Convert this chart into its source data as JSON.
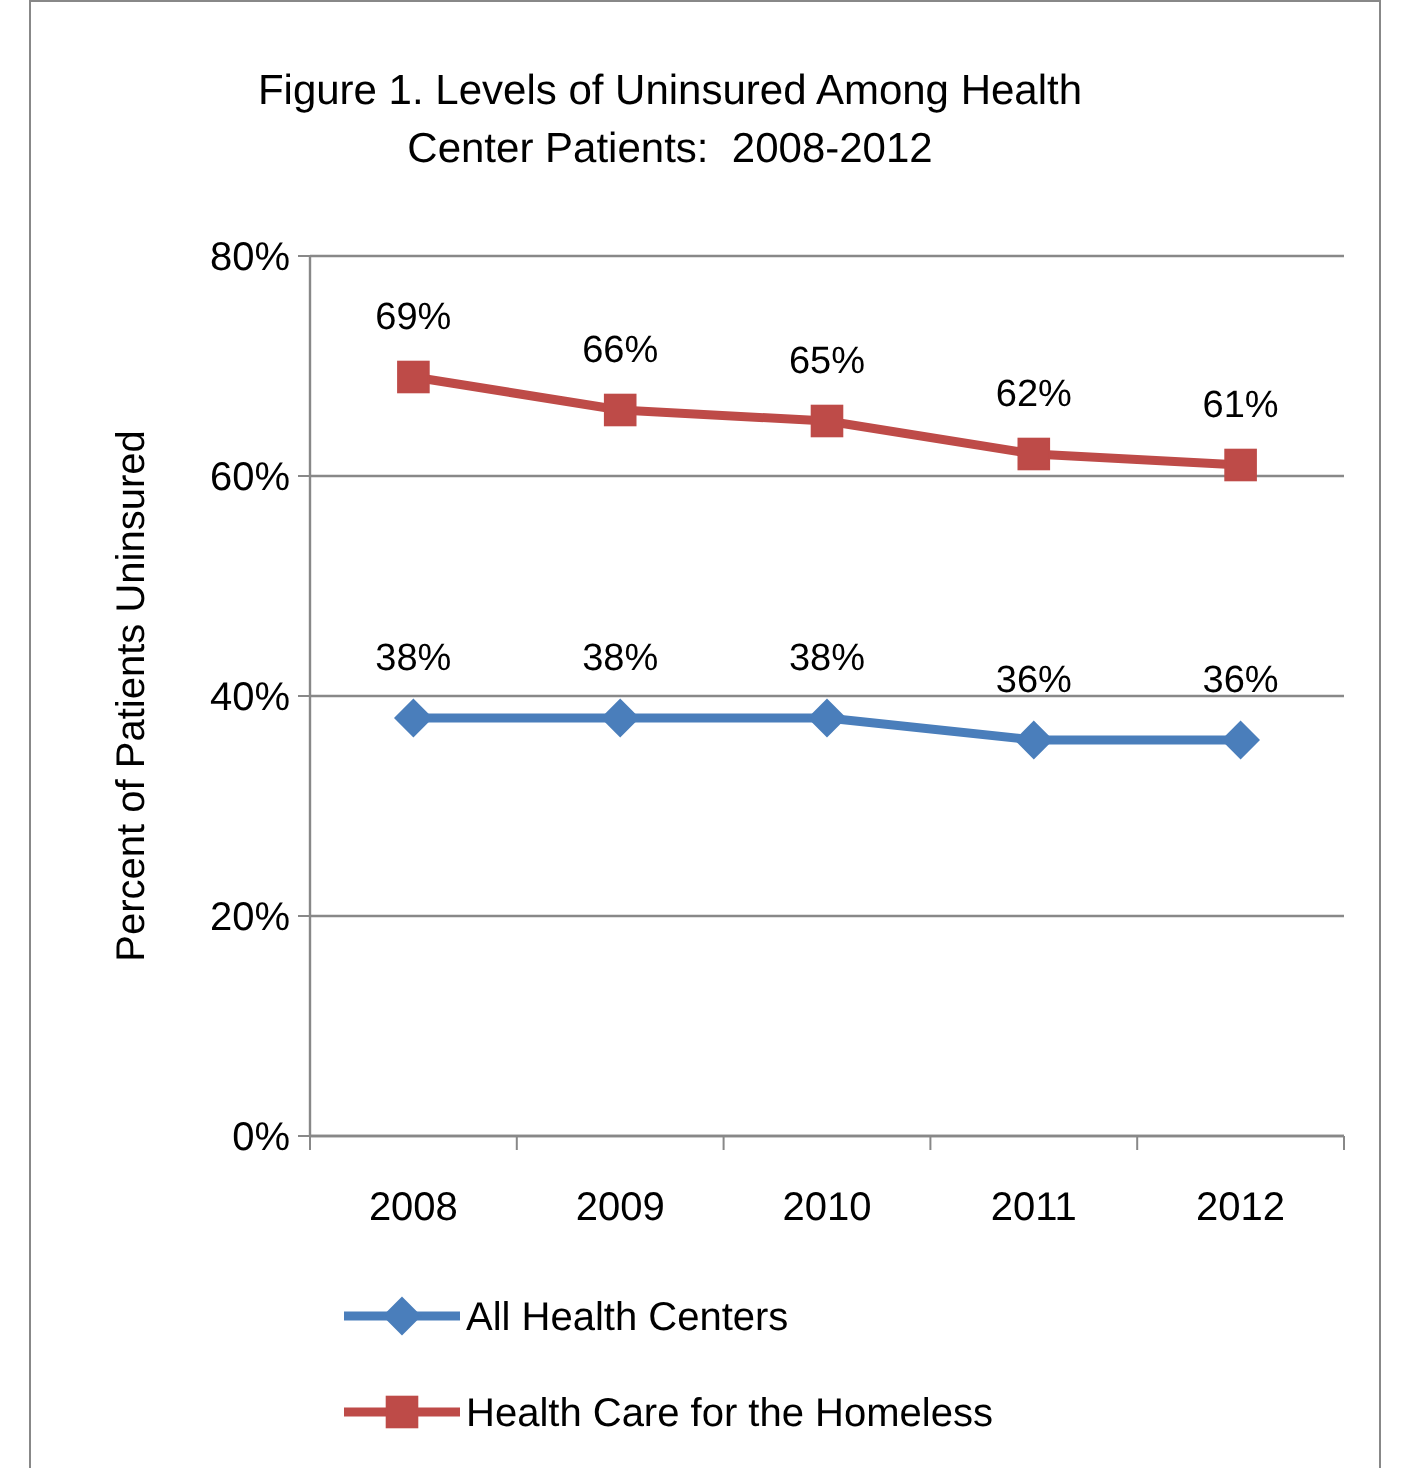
{
  "chart_data": {
    "type": "line",
    "title": "Figure 1. Levels of Uninsured Among Health Center Patients:  2008-2012",
    "ylabel": "Percent of Patients Uninsured",
    "categories": [
      "2008",
      "2009",
      "2010",
      "2011",
      "2012"
    ],
    "series": [
      {
        "name": "All Health Centers",
        "color": "#4a7ebb",
        "marker": "diamond",
        "values": [
          38,
          38,
          38,
          36,
          36
        ],
        "value_labels": [
          "38%",
          "38%",
          "38%",
          "36%",
          "36%"
        ]
      },
      {
        "name": "Health Care for the Homeless",
        "color": "#be4b48",
        "marker": "square",
        "values": [
          69,
          66,
          65,
          62,
          61
        ],
        "value_labels": [
          "69%",
          "66%",
          "65%",
          "62%",
          "61%"
        ]
      }
    ],
    "ylim": [
      0,
      80
    ],
    "yticks": [
      {
        "value": 0,
        "label": "0%"
      },
      {
        "value": 20,
        "label": "20%"
      },
      {
        "value": 40,
        "label": "40%"
      },
      {
        "value": 60,
        "label": "60%"
      },
      {
        "value": 80,
        "label": "80%"
      }
    ],
    "grid": "y",
    "legend": "bottom",
    "line_style": "solid"
  }
}
